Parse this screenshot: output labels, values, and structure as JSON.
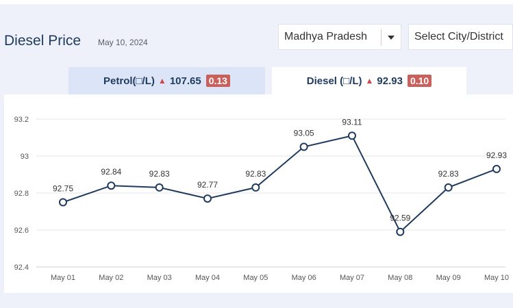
{
  "header": {
    "title": "Diesel Price",
    "date": "May 10, 2024",
    "state_select": "Madhya Pradesh",
    "city_select": "Select City/District"
  },
  "tabs": [
    {
      "label": "Petrol(□/L)",
      "price": "107.65",
      "change": "0.13",
      "direction": "up",
      "active": false
    },
    {
      "label": "Diesel (□/L)",
      "price": "92.93",
      "change": "0.10",
      "direction": "up",
      "active": true
    }
  ],
  "colors": {
    "accent": "#1f3a5f",
    "up_arrow": "#cc4a4a",
    "badge": "#c9605c",
    "active_tab": "#ffffff",
    "inactive_tab": "#dbe5f7"
  },
  "chart_data": {
    "type": "line",
    "categories": [
      "May 01",
      "May 02",
      "May 03",
      "May 04",
      "May 05",
      "May 06",
      "May 07",
      "May 08",
      "May 09",
      "May 10"
    ],
    "series": [
      {
        "values": [
          92.75,
          92.84,
          92.83,
          92.77,
          92.83,
          93.05,
          93.11,
          92.59,
          92.83,
          92.93
        ]
      }
    ],
    "y_ticks": [
      "92.4",
      "92.6",
      "92.8",
      "93",
      "93.2"
    ],
    "ylim": [
      92.4,
      93.2
    ],
    "grid": true
  }
}
